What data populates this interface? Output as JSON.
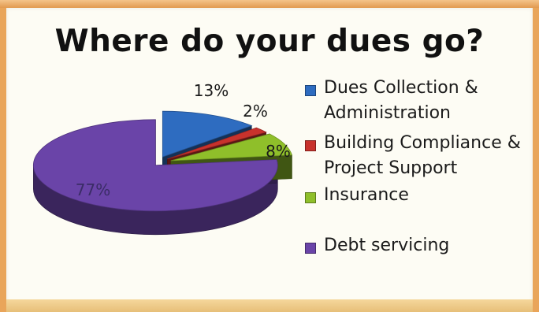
{
  "slide": {
    "title": "Where do your dues go?"
  },
  "chart_data": {
    "type": "pie",
    "title": "Where do your dues go?",
    "slices": [
      {
        "label": "Dues Collection &\nAdministration",
        "value": 13,
        "display": "13%",
        "color": "#2e6cc0"
      },
      {
        "label": "Building Compliance &\nProject Support",
        "value": 2,
        "display": "2%",
        "color": "#c8322c"
      },
      {
        "label": "Insurance",
        "value": 8,
        "display": "8%",
        "color": "#8fbf2a"
      },
      {
        "label": "Debt servicing",
        "value": 77,
        "display": "77%",
        "color": "#6a44a8"
      }
    ],
    "legend_position": "right",
    "style": "3d-exploded"
  }
}
